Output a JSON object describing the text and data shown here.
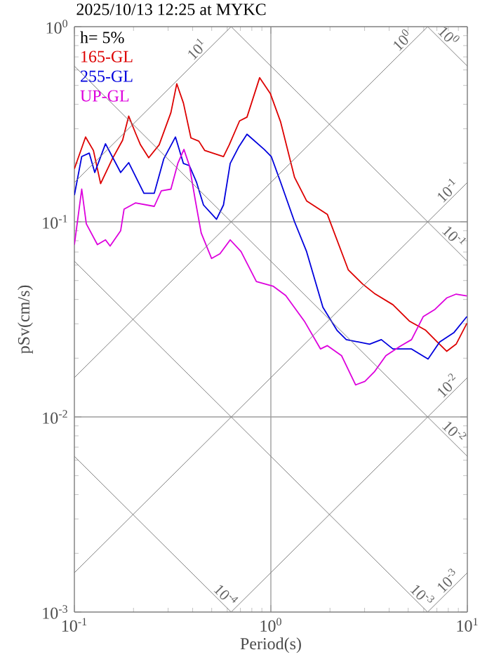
{
  "chart_data": {
    "type": "line",
    "title": "2025/10/13 12:25 at MYKC",
    "xlabel": "Period(s)",
    "ylabel": "pSv(cm/s)",
    "log": "xy",
    "grid": true,
    "legend": "top left",
    "marker": "none",
    "line_style": "solid",
    "xlim": [
      0.1,
      10
    ],
    "ylim": [
      0.001,
      1
    ],
    "xticks": [
      {
        "value": 0.1,
        "label": "10$^{-1}$"
      },
      {
        "value": 1,
        "label": "10$^{0}$"
      },
      {
        "value": 10,
        "label": "10$^{1}$"
      }
    ],
    "yticks": [
      {
        "value": 0.001,
        "label": "10$^{-3}$"
      },
      {
        "value": 0.01,
        "label": "10$^{-2}$"
      },
      {
        "value": 0.1,
        "label": "10$^{-1}$"
      },
      {
        "value": 1,
        "label": "10$^{0}$"
      }
    ],
    "annotations": [
      "h= 5%",
      {
        "text": "10$^{1}$",
        "x": 0.45,
        "y": 0.716
      },
      {
        "text": "10$^{0}$",
        "x": 5,
        "y": 0.796
      },
      {
        "text": "10$^{0}$",
        "x": 7.5,
        "y": 0.838
      },
      {
        "text": "10$^{-1}$",
        "x": 8.5,
        "y": 0.135
      },
      {
        "text": "10$^{-1}$",
        "x": 8,
        "y": 0.0785
      },
      {
        "text": "10$^{-2}$",
        "x": 8.5,
        "y": 0.0135
      },
      {
        "text": "10$^{-2}$",
        "x": 8,
        "y": 0.00785
      },
      {
        "text": "10$^{-3}$",
        "x": 8.5,
        "y": 0.00135
      },
      {
        "text": "10$^{-3}$",
        "x": 5.5,
        "y": 0.00114
      },
      {
        "text": "10$^{-4}$",
        "x": 0.55,
        "y": 0.00114
      }
    ],
    "series": [
      {
        "name": "165-GL",
        "color": "#dd0000",
        "x": [
          0.1,
          0.114,
          0.125,
          0.136,
          0.156,
          0.176,
          0.189,
          0.205,
          0.217,
          0.239,
          0.27,
          0.31,
          0.332,
          0.359,
          0.392,
          0.43,
          0.461,
          0.574,
          0.614,
          0.693,
          0.756,
          0.877,
          0.995,
          1.12,
          1.32,
          1.52,
          1.94,
          2.48,
          2.93,
          3.36,
          4.18,
          5.07,
          6.14,
          7.04,
          7.85,
          8.77,
          9.95
        ],
        "values": [
          0.187,
          0.272,
          0.232,
          0.157,
          0.21,
          0.262,
          0.348,
          0.284,
          0.248,
          0.213,
          0.248,
          0.363,
          0.51,
          0.406,
          0.269,
          0.259,
          0.232,
          0.216,
          0.248,
          0.329,
          0.344,
          0.548,
          0.453,
          0.326,
          0.169,
          0.128,
          0.109,
          0.0566,
          0.048,
          0.043,
          0.0376,
          0.031,
          0.0278,
          0.0242,
          0.0217,
          0.0236,
          0.0302
        ]
      },
      {
        "name": "255-GL",
        "color": "#0000dd",
        "x": [
          0.1,
          0.109,
          0.119,
          0.127,
          0.144,
          0.172,
          0.189,
          0.226,
          0.255,
          0.285,
          0.327,
          0.359,
          0.385,
          0.418,
          0.454,
          0.529,
          0.574,
          0.621,
          0.685,
          0.756,
          0.925,
          1.005,
          1.12,
          1.32,
          1.52,
          1.84,
          2.17,
          2.42,
          3.18,
          3.65,
          4.18,
          5.2,
          6.31,
          7.23,
          8.53,
          9.95
        ],
        "values": [
          0.137,
          0.216,
          0.225,
          0.179,
          0.251,
          0.179,
          0.201,
          0.14,
          0.14,
          0.21,
          0.272,
          0.199,
          0.194,
          0.16,
          0.122,
          0.103,
          0.122,
          0.199,
          0.241,
          0.281,
          0.235,
          0.216,
          0.16,
          0.1,
          0.0704,
          0.0365,
          0.0278,
          0.0249,
          0.0236,
          0.0249,
          0.0223,
          0.0223,
          0.0198,
          0.0242,
          0.027,
          0.0327
        ]
      },
      {
        "name": "UP-GL",
        "color": "#dd00dd",
        "x": [
          0.1,
          0.109,
          0.115,
          0.131,
          0.144,
          0.152,
          0.172,
          0.179,
          0.205,
          0.255,
          0.277,
          0.31,
          0.336,
          0.361,
          0.385,
          0.413,
          0.442,
          0.499,
          0.551,
          0.621,
          0.705,
          0.844,
          1.03,
          1.19,
          1.48,
          1.79,
          1.94,
          2.29,
          2.7,
          3.01,
          3.36,
          3.85,
          4.54,
          5.2,
          5.97,
          6.85,
          7.85,
          8.77,
          9.95
        ],
        "values": [
          0.0764,
          0.147,
          0.0977,
          0.0764,
          0.0808,
          0.0752,
          0.09,
          0.116,
          0.125,
          0.12,
          0.144,
          0.147,
          0.199,
          0.235,
          0.194,
          0.128,
          0.0877,
          0.0649,
          0.0686,
          0.0808,
          0.0704,
          0.0494,
          0.0467,
          0.0419,
          0.031,
          0.0223,
          0.0232,
          0.0206,
          0.0146,
          0.0152,
          0.017,
          0.0206,
          0.023,
          0.0249,
          0.0327,
          0.0356,
          0.0407,
          0.0426,
          0.0417
        ]
      },
      {
        "color": "#808080",
        "x": [
          0.1,
          0.628
        ],
        "values": [
          0.159,
          1
        ]
      },
      {
        "color": "#808080",
        "x": [
          0.1,
          6.28
        ],
        "values": [
          0.0159,
          1
        ]
      },
      {
        "color": "#808080",
        "x": [
          0.1,
          10
        ],
        "values": [
          0.00159,
          0.159
        ]
      },
      {
        "color": "#808080",
        "x": [
          0.628,
          10
        ],
        "values": [
          0.001,
          0.0159
        ]
      },
      {
        "color": "#808080",
        "x": [
          6.28,
          10
        ],
        "values": [
          0.001,
          0.00159
        ]
      },
      {
        "color": "#808080",
        "x": [
          6.28,
          10
        ],
        "values": [
          1,
          0.628
        ]
      },
      {
        "color": "#808080",
        "x": [
          0.628,
          10
        ],
        "values": [
          1,
          0.0628
        ]
      },
      {
        "color": "#808080",
        "x": [
          0.1,
          10
        ],
        "values": [
          0.628,
          0.00628
        ]
      },
      {
        "color": "#808080",
        "x": [
          0.1,
          6.28
        ],
        "values": [
          0.0628,
          0.001
        ]
      },
      {
        "color": "#808080",
        "x": [
          0.1,
          0.628
        ],
        "values": [
          0.00628,
          0.001
        ]
      }
    ]
  }
}
